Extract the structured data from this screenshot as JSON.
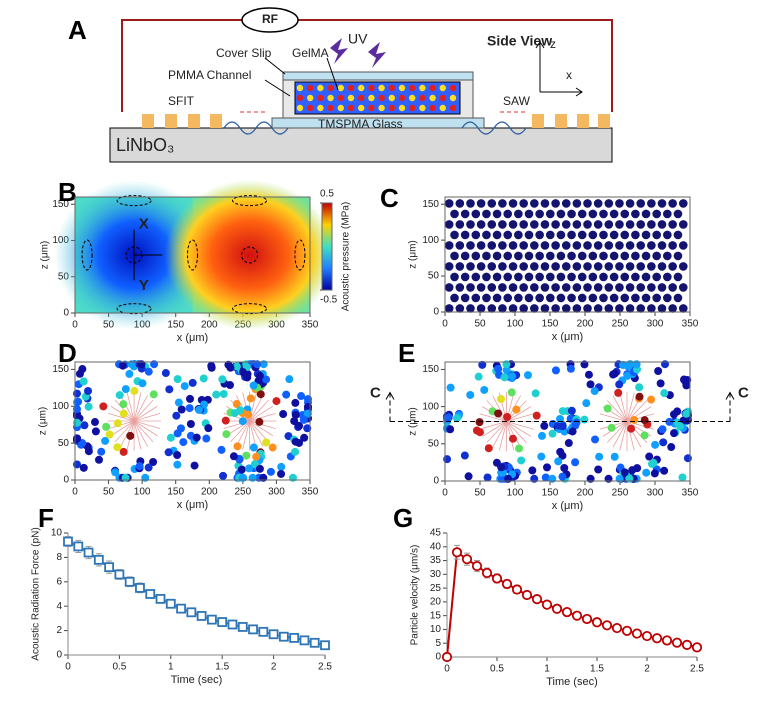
{
  "schematic": {
    "panel": "A",
    "rf": "RF",
    "view": "Side View",
    "cover": "Cover Slip",
    "gel": "GelMA",
    "uv": "UV",
    "pmma": "PMMA Channel",
    "sfit": "SFIT",
    "saw": "SAW",
    "glass": "TMSPMA Glass",
    "substrate": "LiNbO₃",
    "z": "z",
    "x": "x"
  },
  "chart_data": [
    {
      "type": "heatmap",
      "panel": "B",
      "xlabel": "x (μm)",
      "ylabel": "z (μm)",
      "xlim": [
        0,
        350
      ],
      "ylim": [
        0,
        160
      ],
      "xticks": [
        0,
        50,
        100,
        150,
        200,
        250,
        300,
        350
      ],
      "yticks": [
        0,
        50,
        100,
        150
      ],
      "annotations": [
        "X",
        "Y"
      ],
      "colorbar": {
        "label": "Acoustic pressure (MPa)",
        "lim": [
          -0.5,
          0.5
        ],
        "ticks": [
          0.5,
          -0.5
        ]
      }
    },
    {
      "type": "lattice",
      "panel": "C",
      "xlabel": "x (μm)",
      "ylabel": "z (μm)",
      "xlim": [
        0,
        350
      ],
      "ylim": [
        0,
        160
      ],
      "xticks": [
        0,
        50,
        100,
        150,
        200,
        250,
        300,
        350
      ],
      "yticks": [
        0,
        50,
        100,
        150
      ]
    },
    {
      "type": "particles",
      "panel": "D",
      "xlabel": "x (μm)",
      "ylabel": "z (μm)",
      "xlim": [
        0,
        350
      ],
      "ylim": [
        0,
        160
      ],
      "xticks": [
        0,
        50,
        100,
        150,
        200,
        250,
        300,
        350
      ],
      "yticks": [
        0,
        50,
        100,
        150
      ]
    },
    {
      "type": "particles",
      "panel": "E",
      "xlabel": "x (μm)",
      "ylabel": "z (μm)",
      "xlim": [
        0,
        350
      ],
      "ylim": [
        0,
        160
      ],
      "xticks": [
        0,
        50,
        100,
        150,
        200,
        250,
        300,
        350
      ],
      "yticks": [
        0,
        50,
        100,
        150
      ],
      "annotations": [
        "C",
        "C"
      ]
    },
    {
      "type": "line",
      "panel": "F",
      "xlabel": "Time (sec)",
      "ylabel": "Acoustic Radiation Force (pN)",
      "color": "#2e75b6",
      "marker": "square",
      "xlim": [
        0,
        2.5
      ],
      "ylim": [
        0,
        10
      ],
      "xticks": [
        0,
        0.5,
        1,
        1.5,
        2,
        2.5
      ],
      "yticks": [
        0,
        2,
        4,
        6,
        8,
        10
      ],
      "x": [
        0,
        0.1,
        0.2,
        0.3,
        0.4,
        0.5,
        0.6,
        0.7,
        0.8,
        0.9,
        1,
        1.1,
        1.2,
        1.3,
        1.4,
        1.5,
        1.6,
        1.7,
        1.8,
        1.9,
        2,
        2.1,
        2.2,
        2.3,
        2.4,
        2.5
      ],
      "values": [
        9.3,
        8.9,
        8.4,
        7.8,
        7.2,
        6.6,
        6.0,
        5.5,
        5.0,
        4.6,
        4.2,
        3.8,
        3.5,
        3.2,
        2.9,
        2.7,
        2.5,
        2.3,
        2.1,
        1.9,
        1.7,
        1.5,
        1.4,
        1.2,
        1.0,
        0.8
      ],
      "errors": [
        0.4,
        0.5,
        0.5,
        0.5,
        0.5,
        0.4,
        0.4,
        0.4,
        0.3,
        0.3,
        0.3,
        0.3,
        0.3,
        0.3,
        0.3,
        0.2,
        0.2,
        0.2,
        0.2,
        0.2,
        0.2,
        0.2,
        0.2,
        0.2,
        0.2,
        0.2
      ]
    },
    {
      "type": "line",
      "panel": "G",
      "xlabel": "Time (sec)",
      "ylabel": "Particle velocity (μm/s)",
      "color": "#c00000",
      "marker": "circle",
      "xlim": [
        0,
        2.5
      ],
      "ylim": [
        0,
        45
      ],
      "xticks": [
        0,
        0.5,
        1,
        1.5,
        2,
        2.5
      ],
      "yticks": [
        0,
        5,
        10,
        15,
        20,
        25,
        30,
        35,
        40,
        45
      ],
      "x": [
        0,
        0.1,
        0.2,
        0.3,
        0.4,
        0.5,
        0.6,
        0.7,
        0.8,
        0.9,
        1,
        1.1,
        1.2,
        1.3,
        1.4,
        1.5,
        1.6,
        1.7,
        1.8,
        1.9,
        2,
        2.1,
        2.2,
        2.3,
        2.4,
        2.5
      ],
      "values": [
        0,
        38,
        35.5,
        33,
        30.5,
        28.5,
        26.5,
        24.5,
        22.5,
        21,
        19,
        17.5,
        16.3,
        15,
        13.8,
        12.6,
        11.5,
        10.5,
        9.5,
        8.5,
        7.6,
        6.8,
        6,
        5.2,
        4.4,
        3.5
      ],
      "errors": [
        0,
        2.5,
        2.2,
        2,
        1.8,
        1.6,
        1.5,
        1.4,
        1.3,
        1.2,
        1.1,
        1,
        1,
        0.9,
        0.9,
        0.8,
        0.8,
        0.7,
        0.7,
        0.7,
        0.6,
        0.6,
        0.6,
        0.5,
        0.5,
        0.5
      ]
    }
  ]
}
